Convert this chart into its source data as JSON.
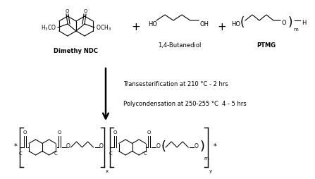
{
  "background_color": "#ffffff",
  "text_color": "#000000",
  "figsize": [
    4.47,
    2.55
  ],
  "dpi": 100,
  "step1_label": "Transesterification at 210 °C - 2 hrs",
  "step2_label": "Polycondensation at 250-255 °C  4 - 5 hrs",
  "comp1_label": "Dimethy NDC",
  "comp2_label": "1,4-Butanediol",
  "comp3_label": "PTMG"
}
